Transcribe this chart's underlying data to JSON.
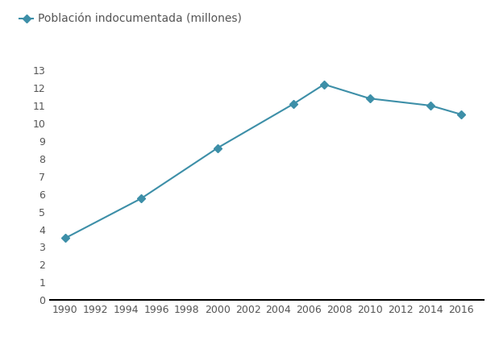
{
  "years": [
    1990,
    1995,
    2000,
    2005,
    2007,
    2010,
    2014,
    2016
  ],
  "values": [
    3.5,
    5.75,
    8.6,
    11.1,
    12.2,
    11.4,
    11.0,
    10.5
  ],
  "line_color": "#3d8fa8",
  "marker_color": "#3d8fa8",
  "legend_label": "Población indocumentada (millones)",
  "xlim": [
    1989,
    2017.5
  ],
  "ylim": [
    0,
    13.5
  ],
  "yticks": [
    0,
    1,
    2,
    3,
    4,
    5,
    6,
    7,
    8,
    9,
    10,
    11,
    12,
    13
  ],
  "xticks": [
    1990,
    1992,
    1994,
    1996,
    1998,
    2000,
    2002,
    2004,
    2006,
    2008,
    2010,
    2012,
    2014,
    2016
  ],
  "background_color": "#ffffff",
  "legend_fontsize": 10,
  "tick_fontsize": 9,
  "tick_color": "#555555"
}
